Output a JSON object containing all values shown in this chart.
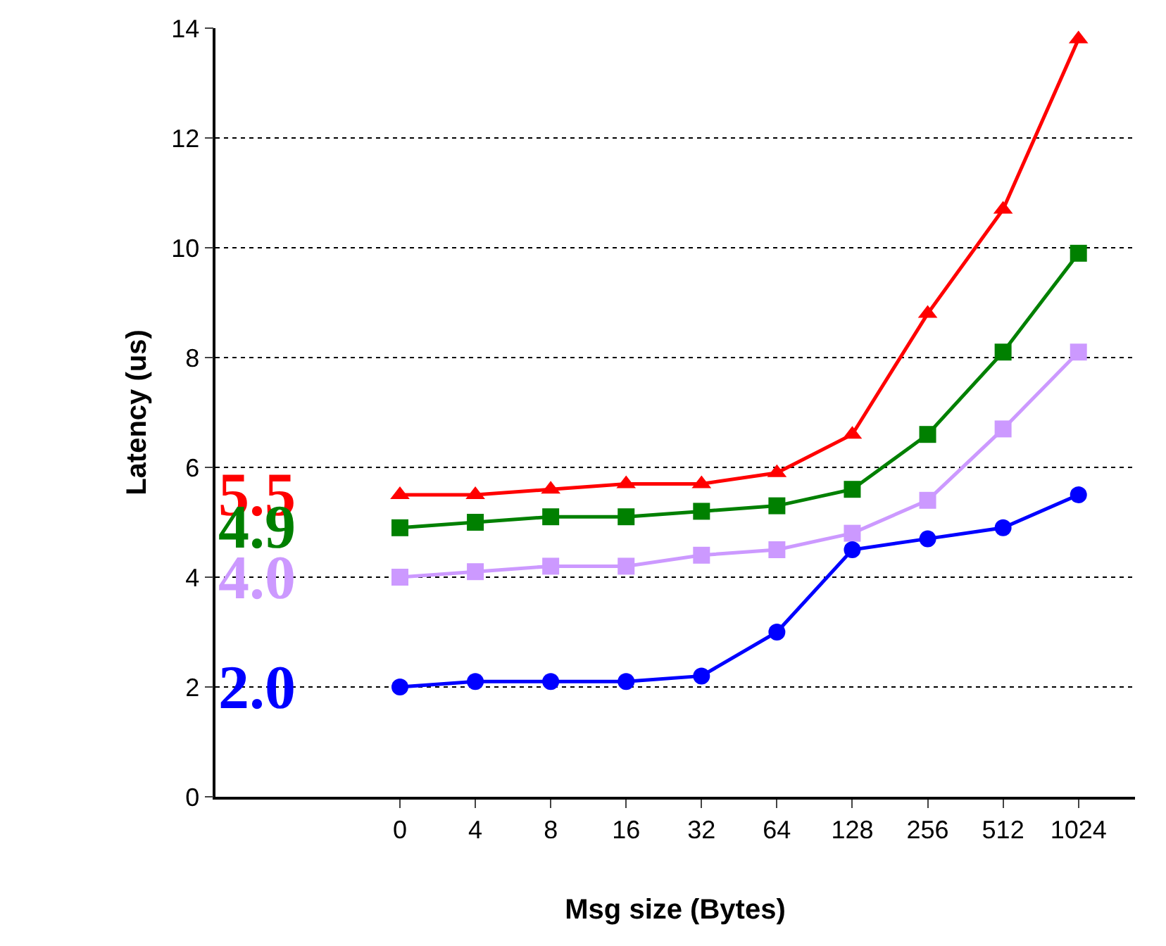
{
  "chart_data": {
    "type": "line",
    "xlabel": "Msg size (Bytes)",
    "ylabel": "Latency (us)",
    "categories": [
      "0",
      "4",
      "8",
      "16",
      "32",
      "64",
      "128",
      "256",
      "512",
      "1024"
    ],
    "series": [
      {
        "color": "#ff0000",
        "marker": "triangle",
        "values": [
          5.5,
          5.5,
          5.6,
          5.7,
          5.7,
          5.9,
          6.6,
          8.8,
          10.7,
          13.8
        ]
      },
      {
        "color": "#008000",
        "marker": "square",
        "values": [
          4.9,
          5.0,
          5.1,
          5.1,
          5.2,
          5.3,
          5.6,
          6.6,
          8.1,
          9.9
        ]
      },
      {
        "color": "#cc99ff",
        "marker": "square",
        "values": [
          4.0,
          4.1,
          4.2,
          4.2,
          4.4,
          4.5,
          4.8,
          5.4,
          6.7,
          8.1
        ]
      },
      {
        "color": "#0000ff",
        "marker": "circle",
        "values": [
          2.0,
          2.1,
          2.1,
          2.1,
          2.2,
          3.0,
          4.5,
          4.7,
          4.9,
          5.5
        ]
      }
    ],
    "annotations": [
      {
        "text": "5.5",
        "x": "0",
        "y": 5.5
      },
      {
        "text": "4.9",
        "x": "0",
        "y": 4.9
      },
      {
        "text": "4.0",
        "x": "0",
        "y": 4.0
      },
      {
        "text": "2.0",
        "x": "0",
        "y": 2.0
      }
    ],
    "ylim": [
      0,
      14
    ],
    "yticks": [
      0,
      2,
      4,
      6,
      8,
      10,
      12,
      14
    ],
    "grid": "y",
    "legend": false,
    "line_style": "solid"
  }
}
